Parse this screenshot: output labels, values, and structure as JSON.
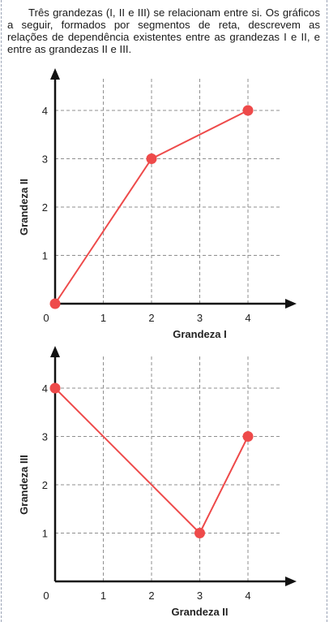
{
  "intro_text": "Três grandezas (I, II e III) se relacionam entre si. Os gráficos a seguir, formados por segmentos de reta, descrevem as relações de dependência existentes entre as grandezas I e II, e entre as grandezas II e III.",
  "colors": {
    "series": "#ee4a4a",
    "axis": "#111111",
    "grid": "#8f8f8f"
  },
  "chart_data": [
    {
      "type": "line",
      "title": "",
      "xlabel": "Grandeza I",
      "ylabel": "Grandeza II",
      "xlim": [
        0,
        4.7
      ],
      "ylim": [
        0,
        4.7
      ],
      "xticks": [
        0,
        1,
        2,
        3,
        4
      ],
      "yticks": [
        1,
        2,
        3,
        4
      ],
      "grid": true,
      "series": [
        {
          "x": [
            0,
            2,
            4
          ],
          "y": [
            0,
            3,
            4
          ]
        }
      ]
    },
    {
      "type": "line",
      "title": "",
      "xlabel": "Grandeza II",
      "ylabel": "Grandeza III",
      "xlim": [
        0,
        4.7
      ],
      "ylim": [
        0,
        4.7
      ],
      "xticks": [
        0,
        1,
        2,
        3,
        4
      ],
      "yticks": [
        1,
        2,
        3,
        4
      ],
      "grid": true,
      "series": [
        {
          "x": [
            0,
            3,
            4
          ],
          "y": [
            4,
            1,
            3
          ]
        }
      ]
    }
  ]
}
